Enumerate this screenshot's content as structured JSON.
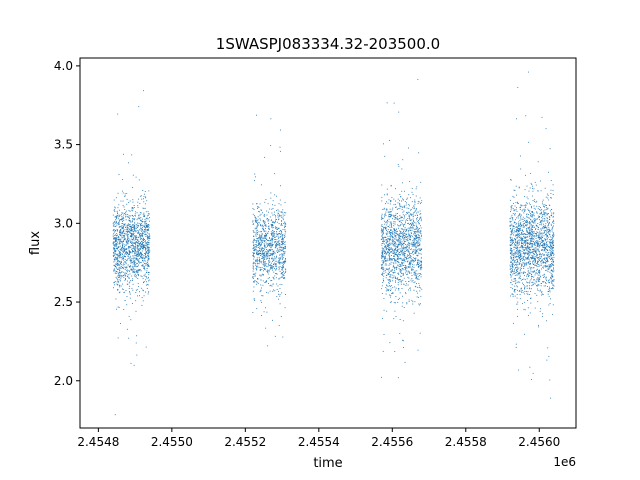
{
  "chart_data": {
    "type": "scatter",
    "title": "1SWASPJ083334.32-203500.0",
    "xlabel": "time",
    "ylabel": "flux",
    "x_offset_label": "1e6",
    "xlim": [
      2.45475,
      2.4561
    ],
    "ylim": [
      1.7,
      4.05
    ],
    "grid": false,
    "point_color": "#1f77b4",
    "x_ticks": [
      2.4548,
      2.455,
      2.4552,
      2.4554,
      2.4556,
      2.4558,
      2.456
    ],
    "x_tick_labels": [
      "2.4548",
      "2.4550",
      "2.4552",
      "2.4554",
      "2.4556",
      "2.4558",
      "2.4560"
    ],
    "y_ticks": [
      2.0,
      2.5,
      3.0,
      3.5,
      4.0
    ],
    "y_tick_labels": [
      "2.0",
      "2.5",
      "3.0",
      "3.5",
      "4.0"
    ],
    "clusters": [
      {
        "x_range": [
          2.45484,
          2.45494
        ],
        "median": 2.85,
        "spread": 0.13,
        "n": 1400
      },
      {
        "x_range": [
          2.45522,
          2.45531
        ],
        "median": 2.85,
        "spread": 0.13,
        "n": 1000
      },
      {
        "x_range": [
          2.45557,
          2.45568
        ],
        "median": 2.85,
        "spread": 0.15,
        "n": 1400
      },
      {
        "x_range": [
          2.45592,
          2.45604
        ],
        "median": 2.85,
        "spread": 0.15,
        "n": 1700
      }
    ]
  }
}
